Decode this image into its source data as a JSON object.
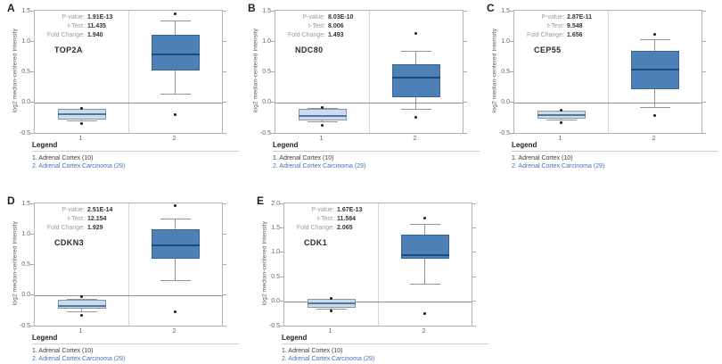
{
  "figure": {
    "ylabel": "log2 median-centered intensity",
    "legend": {
      "title": "Legend",
      "items": [
        {
          "label": "1. Adrenal Cortex (10)",
          "color": "#3c3c3c"
        },
        {
          "label": "2. Adrenal Cortex Carcinoma (29)",
          "color": "#4472b8"
        }
      ]
    },
    "colors": {
      "group1_box_fill": "#c9dbec",
      "group1_box_border": "#8a98a5",
      "group1_median": "#53779c",
      "group2_box_fill": "#4d80b6",
      "group2_box_border": "#39658f",
      "group2_median": "#1c4b77",
      "whisker": "#949494",
      "zero_line": "#8f8f8f",
      "frame_border": "#b3b3b3"
    }
  },
  "chart_data": [
    {
      "type": "box",
      "panel": "A",
      "gene": "TOP2A",
      "stats": [
        {
          "label": "P-value:",
          "value": "1.91E-13"
        },
        {
          "label": "t-Test:",
          "value": "11.435"
        },
        {
          "label": "Fold Change:",
          "value": "1.940"
        }
      ],
      "ylim": [
        -0.5,
        1.5
      ],
      "yticks": [
        1.5,
        1.0,
        0.5,
        0.0,
        -0.5
      ],
      "categories": [
        "1",
        "2"
      ],
      "groups": [
        {
          "name": "Adrenal Cortex",
          "style": "light",
          "q1": -0.28,
          "median": -0.2,
          "q3": -0.11,
          "whisker_low": -0.31,
          "whisker_high": -0.11,
          "outliers": [
            -0.1,
            -0.35
          ]
        },
        {
          "name": "Adrenal Cortex Carcinoma",
          "style": "dark",
          "q1": 0.52,
          "median": 0.78,
          "q3": 1.1,
          "whisker_low": 0.13,
          "whisker_high": 1.33,
          "outliers": [
            1.45,
            -0.2
          ]
        }
      ]
    },
    {
      "type": "box",
      "panel": "B",
      "gene": "NDC80",
      "stats": [
        {
          "label": "P-value:",
          "value": "8.03E-10"
        },
        {
          "label": "t-Test:",
          "value": "8.006"
        },
        {
          "label": "Fold Change:",
          "value": "1.493"
        }
      ],
      "ylim": [
        -0.5,
        1.5
      ],
      "yticks": [
        1.5,
        1.0,
        0.5,
        0.0,
        -0.5
      ],
      "categories": [
        "1",
        "2"
      ],
      "groups": [
        {
          "name": "Adrenal Cortex",
          "style": "light",
          "q1": -0.3,
          "median": -0.22,
          "q3": -0.1,
          "whisker_low": -0.32,
          "whisker_high": -0.1,
          "outliers": [
            -0.08,
            -0.37
          ]
        },
        {
          "name": "Adrenal Cortex Carcinoma",
          "style": "dark",
          "q1": 0.08,
          "median": 0.41,
          "q3": 0.63,
          "whisker_low": -0.11,
          "whisker_high": 0.83,
          "outliers": [
            1.13,
            -0.24
          ]
        }
      ]
    },
    {
      "type": "box",
      "panel": "C",
      "gene": "CEP55",
      "stats": [
        {
          "label": "P-value:",
          "value": "2.87E-11"
        },
        {
          "label": "t-Test:",
          "value": "9.548"
        },
        {
          "label": "Fold Change:",
          "value": "1.656"
        }
      ],
      "ylim": [
        -0.5,
        1.5
      ],
      "yticks": [
        1.5,
        1.0,
        0.5,
        0.0,
        -0.5
      ],
      "categories": [
        "1",
        "2"
      ],
      "groups": [
        {
          "name": "Adrenal Cortex",
          "style": "light",
          "q1": -0.27,
          "median": -0.21,
          "q3": -0.14,
          "whisker_low": -0.29,
          "whisker_high": -0.14,
          "outliers": [
            -0.13,
            -0.33
          ]
        },
        {
          "name": "Adrenal Cortex Carcinoma",
          "style": "dark",
          "q1": 0.21,
          "median": 0.53,
          "q3": 0.85,
          "whisker_low": -0.08,
          "whisker_high": 1.02,
          "outliers": [
            1.12,
            -0.21
          ]
        }
      ]
    },
    {
      "type": "box",
      "panel": "D",
      "gene": "CDKN3",
      "stats": [
        {
          "label": "P-value:",
          "value": "2.51E-14"
        },
        {
          "label": "t-Test:",
          "value": "12.154"
        },
        {
          "label": "Fold Change:",
          "value": "1.929"
        }
      ],
      "ylim": [
        -0.5,
        1.5
      ],
      "yticks": [
        1.5,
        1.0,
        0.5,
        0.0,
        -0.5
      ],
      "categories": [
        "1",
        "2"
      ],
      "groups": [
        {
          "name": "Adrenal Cortex",
          "style": "light",
          "q1": -0.23,
          "median": -0.18,
          "q3": -0.07,
          "whisker_low": -0.28,
          "whisker_high": -0.07,
          "outliers": [
            -0.03,
            -0.33
          ]
        },
        {
          "name": "Adrenal Cortex Carcinoma",
          "style": "dark",
          "q1": 0.6,
          "median": 0.82,
          "q3": 1.08,
          "whisker_low": 0.24,
          "whisker_high": 1.25,
          "outliers": [
            1.47,
            -0.28
          ]
        }
      ]
    },
    {
      "type": "box",
      "panel": "E",
      "gene": "CDK1",
      "stats": [
        {
          "label": "P-value:",
          "value": "1.67E-13"
        },
        {
          "label": "t-Test:",
          "value": "11.584"
        },
        {
          "label": "Fold Change:",
          "value": "2.065"
        }
      ],
      "ylim": [
        -0.5,
        2.0
      ],
      "yticks": [
        2.0,
        1.5,
        1.0,
        0.5,
        0.0,
        -0.5
      ],
      "categories": [
        "1",
        "2"
      ],
      "groups": [
        {
          "name": "Adrenal Cortex",
          "style": "light",
          "q1": -0.13,
          "median": -0.04,
          "q3": 0.04,
          "whisker_low": -0.16,
          "whisker_high": 0.04,
          "outliers": [
            0.06,
            -0.2
          ]
        },
        {
          "name": "Adrenal Cortex Carcinoma",
          "style": "dark",
          "q1": 0.86,
          "median": 0.94,
          "q3": 1.36,
          "whisker_low": 0.35,
          "whisker_high": 1.57,
          "outliers": [
            1.7,
            -0.25
          ]
        }
      ]
    }
  ]
}
